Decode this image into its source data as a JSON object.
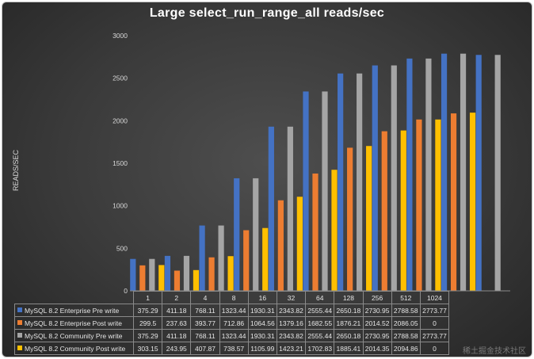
{
  "chart_data": {
    "type": "bar",
    "title": "Large select_run_range_all   reads/sec",
    "ylabel": "READS/SEC",
    "ylim": [
      0,
      3000
    ],
    "yticks": [
      0,
      500,
      1000,
      1500,
      2000,
      2500,
      3000
    ],
    "grid": false,
    "legend": "data table below chart",
    "categories": [
      "1",
      "2",
      "4",
      "8",
      "16",
      "32",
      "64",
      "128",
      "256",
      "512",
      "1024"
    ],
    "series": [
      {
        "name": "MySQL 8.2 Enterprise Pre write",
        "color": "#4472c4",
        "values": [
          375.29,
          411.18,
          768.11,
          1323.44,
          1930.31,
          2343.82,
          2555.44,
          2650.18,
          2730.95,
          2788.58,
          2773.77
        ],
        "labels": [
          "375.29",
          "411.18",
          "768.11",
          "1323.44",
          "1930.31",
          "2343.82",
          "2555.44",
          "2650.18",
          "2730.95",
          "2788.58",
          "2773.77"
        ]
      },
      {
        "name": "MySQL 8.2 Enterprise Post write",
        "color": "#ed7d31",
        "values": [
          299.5,
          237.63,
          393.77,
          712.86,
          1064.56,
          1379.16,
          1682.55,
          1876.21,
          2014.52,
          2086.05,
          0
        ],
        "labels": [
          "299.5",
          "237.63",
          "393.77",
          "712.86",
          "1064.56",
          "1379.16",
          "1682.55",
          "1876.21",
          "2014.52",
          "2086.05",
          "0"
        ]
      },
      {
        "name": "MySQL 8.2 Community Pre write",
        "color": "#a5a5a5",
        "values": [
          375.29,
          411.18,
          768.11,
          1323.44,
          1930.31,
          2343.82,
          2555.44,
          2650.18,
          2730.95,
          2788.58,
          2773.77
        ],
        "labels": [
          "375.29",
          "411.18",
          "768.11",
          "1323.44",
          "1930.31",
          "2343.82",
          "2555.44",
          "2650.18",
          "2730.95",
          "2788.58",
          "2773.77"
        ]
      },
      {
        "name": "MySQL 8.2 Community Post write",
        "color": "#ffc000",
        "values": [
          303.15,
          243.95,
          407.87,
          738.57,
          1105.99,
          1423.21,
          1702.83,
          1885.41,
          2014.35,
          2094.86,
          0
        ],
        "labels": [
          "303.15",
          "243.95",
          "407.87",
          "738.57",
          "1105.99",
          "1423.21",
          "1702.83",
          "1885.41",
          "2014.35",
          "2094.86",
          "0"
        ]
      }
    ]
  },
  "watermark": "稀土掘金技术社区"
}
